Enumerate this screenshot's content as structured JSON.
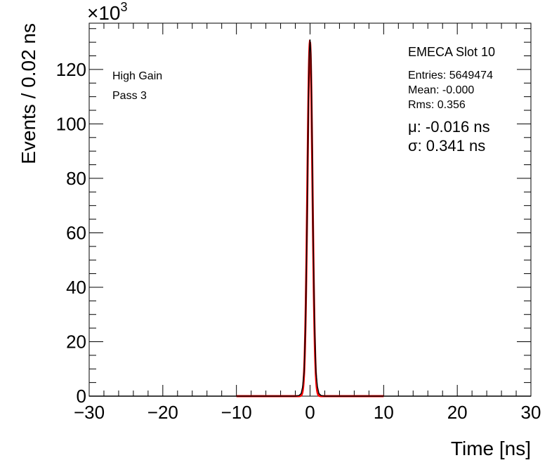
{
  "chart_data": {
    "type": "line",
    "xlabel": "Time [ns]",
    "ylabel": "Events / 0.02 ns",
    "y_multiplier": "×10",
    "y_multiplier_exp": "3",
    "xlim": [
      -30,
      30
    ],
    "ylim": [
      0,
      137
    ],
    "x_ticks": [
      -30,
      -20,
      -10,
      0,
      10,
      20,
      30
    ],
    "x_tick_labels": [
      "−30",
      "−20",
      "−10",
      "0",
      "10",
      "20",
      "30"
    ],
    "y_ticks": [
      0,
      20,
      40,
      60,
      80,
      100,
      120
    ],
    "y_tick_labels": [
      "0",
      "20",
      "40",
      "60",
      "80",
      "100",
      "120"
    ],
    "grid": false,
    "series": [
      {
        "kind": "histogram",
        "color": "#000000",
        "x": [
          -2.0,
          -1.5,
          -1.2,
          -1.0,
          -0.8,
          -0.6,
          -0.4,
          -0.3,
          -0.2,
          -0.1,
          0.0,
          0.1,
          0.2,
          0.3,
          0.4,
          0.6,
          0.8,
          1.0,
          1.2,
          1.5,
          2.0
        ],
        "y": [
          0,
          0.2,
          1.0,
          3.5,
          9,
          28,
          65,
          90,
          112,
          126,
          131,
          126,
          111,
          89,
          63,
          27,
          9,
          3.5,
          1.0,
          0.2,
          0
        ]
      },
      {
        "kind": "fit",
        "color": "#ff0000",
        "x_range": [
          -10,
          10
        ],
        "mu": -0.016,
        "sigma": 0.341,
        "amplitude": 130
      }
    ],
    "annotations": {
      "gain": "High Gain",
      "pass": "Pass 3",
      "title": "EMECA Slot 10",
      "entries": "Entries: 5649474",
      "mean": "Mean: -0.000",
      "rms": "Rms: 0.356",
      "mu": "μ: -0.016 ns",
      "sigma": "σ: 0.341 ns"
    }
  }
}
